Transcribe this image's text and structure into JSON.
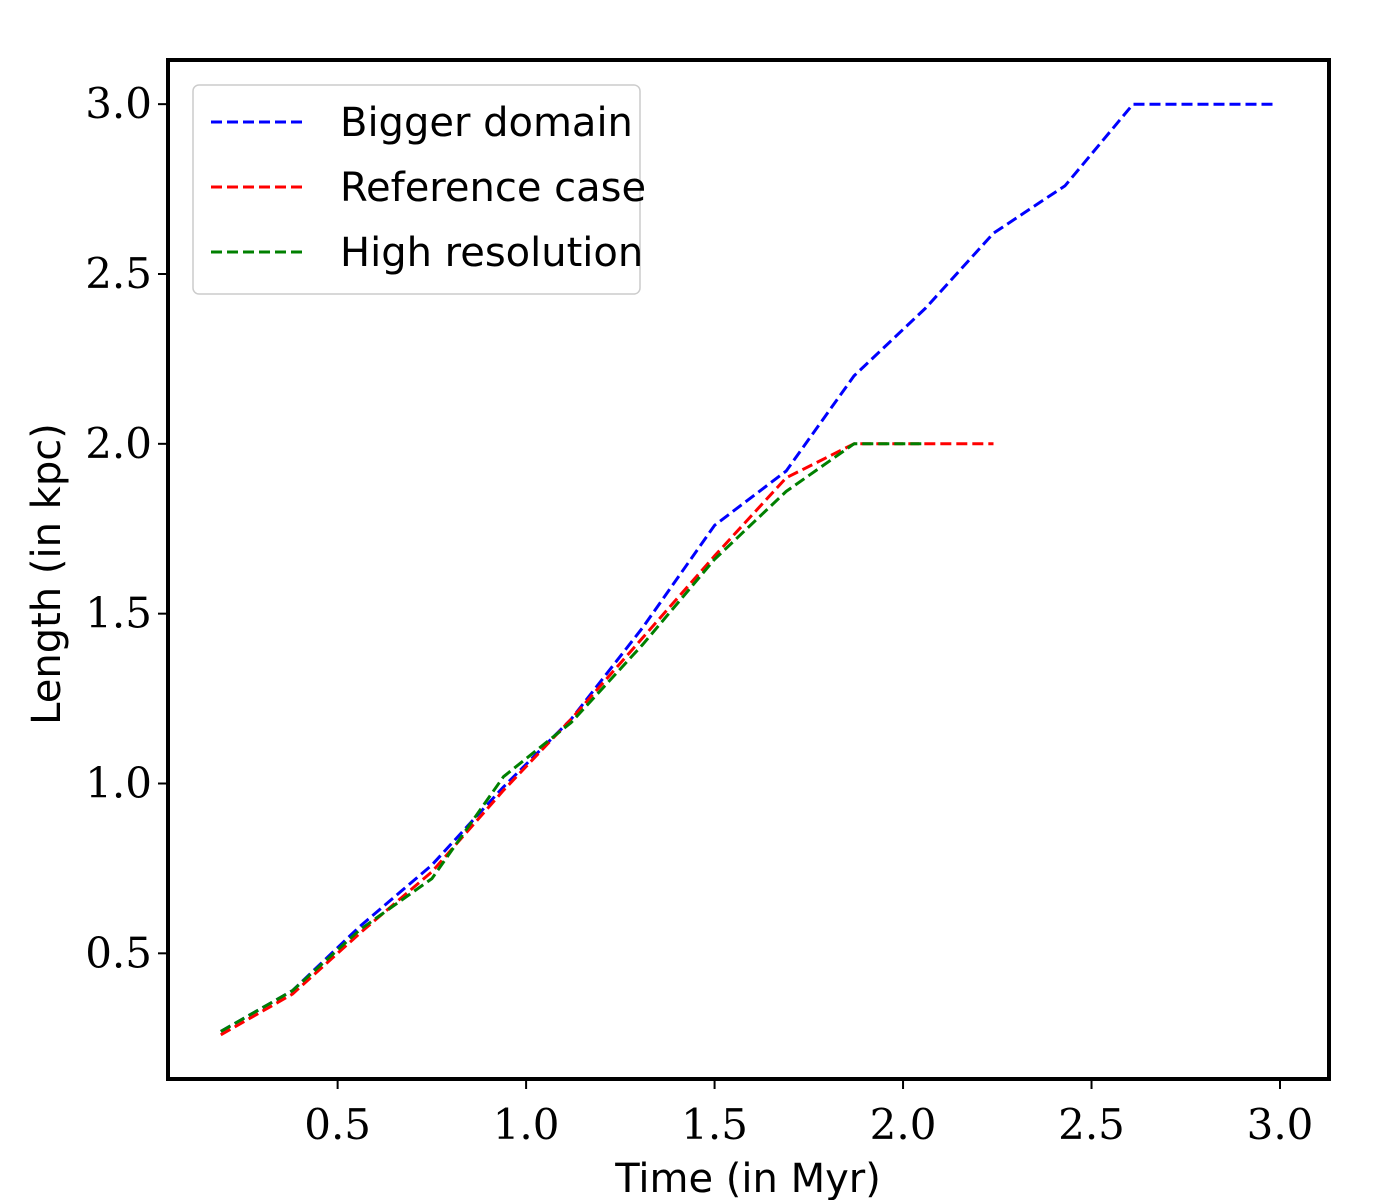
{
  "chart_data": {
    "type": "line",
    "title": "",
    "xlabel": "Time (in Myr)",
    "ylabel": "Length (in kpc)",
    "xlim": [
      0.05,
      3.13
    ],
    "ylim": [
      0.13,
      3.13
    ],
    "xticks": [
      0.5,
      1.0,
      1.5,
      2.0,
      2.5,
      3.0
    ],
    "xtick_labels": [
      "0.5",
      "1.0",
      "1.5",
      "2.0",
      "2.5",
      "3.0"
    ],
    "yticks": [
      0.5,
      1.0,
      1.5,
      2.0,
      2.5,
      3.0
    ],
    "ytick_labels": [
      "0.5",
      "1.0",
      "1.5",
      "2.0",
      "2.5",
      "3.0"
    ],
    "grid": false,
    "legend_position": "top-left",
    "series": [
      {
        "name": "Bigger domain",
        "color": "#0000ff",
        "style": "dashed",
        "x": [
          0.19,
          0.38,
          0.56,
          0.75,
          0.94,
          1.12,
          1.31,
          1.5,
          1.69,
          1.87,
          2.06,
          2.24,
          2.43,
          2.61,
          2.8,
          2.98
        ],
        "y": [
          0.27,
          0.39,
          0.58,
          0.76,
          0.99,
          1.19,
          1.46,
          1.76,
          1.92,
          2.2,
          2.4,
          2.62,
          2.76,
          3.0,
          3.0,
          3.0
        ]
      },
      {
        "name": "Reference case",
        "color": "#ff0000",
        "style": "dashed",
        "x": [
          0.19,
          0.38,
          0.56,
          0.75,
          0.94,
          1.12,
          1.31,
          1.5,
          1.69,
          1.87,
          2.06,
          2.24
        ],
        "y": [
          0.26,
          0.38,
          0.56,
          0.74,
          0.98,
          1.19,
          1.43,
          1.67,
          1.9,
          2.0,
          2.0,
          2.0
        ]
      },
      {
        "name": "High resolution",
        "color": "#008000",
        "style": "dashed",
        "x": [
          0.19,
          0.38,
          0.56,
          0.75,
          0.94,
          1.12,
          1.31,
          1.5,
          1.69,
          1.87,
          2.06
        ],
        "y": [
          0.27,
          0.39,
          0.57,
          0.72,
          1.02,
          1.18,
          1.41,
          1.66,
          1.86,
          2.0,
          2.0
        ]
      }
    ]
  }
}
